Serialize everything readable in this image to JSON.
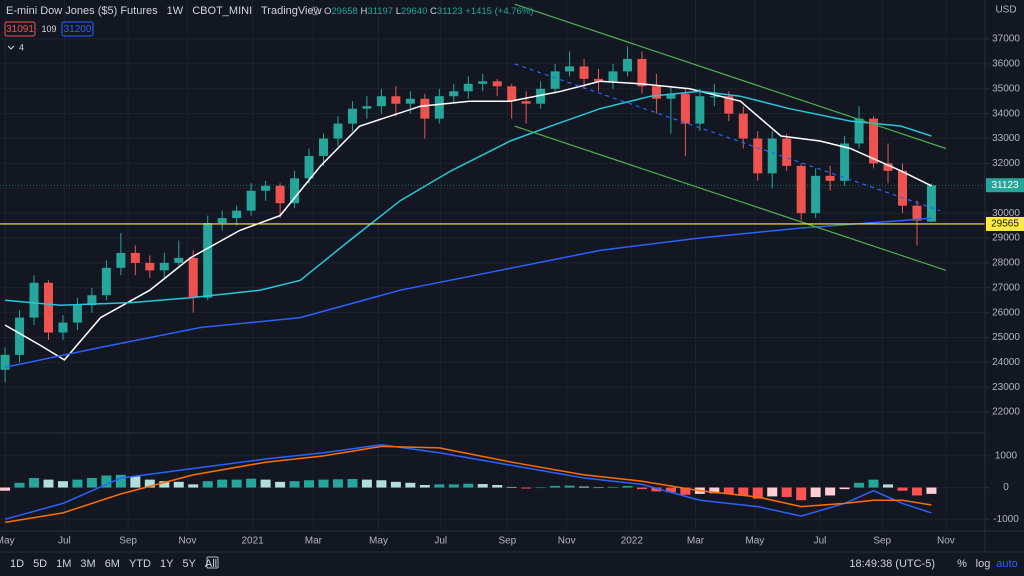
{
  "header": {
    "title": "E-mini Dow Jones ($5) Futures",
    "interval": "1W",
    "exchange": "CBOT_MINI",
    "source": "TradingView",
    "quote": [
      {
        "label": "O",
        "value": "29658"
      },
      {
        "label": "H",
        "value": "31197"
      },
      {
        "label": "L",
        "value": "29640"
      },
      {
        "label": "C",
        "value": "31123"
      }
    ],
    "change": "+1415 (+4.76%)",
    "sell": "31091",
    "spread": "109",
    "buy": "31200",
    "indicators": "4"
  },
  "chart_data": [
    {
      "type": "candlestick",
      "currency": "USD",
      "up_color": "#26a69a",
      "down_color": "#ef5350",
      "grid": true,
      "xlim": [
        -0.35,
        67.7
      ],
      "ylim": [
        21200,
        38570
      ],
      "yticks": [
        22000,
        23000,
        24000,
        25000,
        26000,
        27000,
        28000,
        29000,
        30000,
        31000,
        32000,
        33000,
        34000,
        35000,
        36000,
        37000
      ],
      "xticks": [
        {
          "value": 0,
          "label": "May"
        },
        {
          "value": 4.1,
          "label": "Jul"
        },
        {
          "value": 8.5,
          "label": "Sep"
        },
        {
          "value": 12.6,
          "label": "Nov"
        },
        {
          "value": 17.1,
          "label": "2021"
        },
        {
          "value": 21.3,
          "label": "Mar"
        },
        {
          "value": 25.8,
          "label": "May"
        },
        {
          "value": 30.1,
          "label": "Jul"
        },
        {
          "value": 34.7,
          "label": "Sep"
        },
        {
          "value": 38.8,
          "label": "Nov"
        },
        {
          "value": 43.3,
          "label": "2022"
        },
        {
          "value": 47.7,
          "label": "Mar"
        },
        {
          "value": 51.8,
          "label": "May"
        },
        {
          "value": 56.3,
          "label": "Jul"
        },
        {
          "value": 60.6,
          "label": "Sep"
        },
        {
          "value": 65,
          "label": "Nov"
        }
      ],
      "candles": [
        [
          23700,
          24600,
          23200,
          24300
        ],
        [
          24300,
          26100,
          24000,
          25800
        ],
        [
          25800,
          27500,
          25500,
          27200
        ],
        [
          27200,
          27300,
          24900,
          25200
        ],
        [
          25200,
          25900,
          24900,
          25600
        ],
        [
          25600,
          26600,
          25300,
          26300
        ],
        [
          26300,
          27000,
          26000,
          26700
        ],
        [
          26700,
          28100,
          26500,
          27800
        ],
        [
          27800,
          29200,
          27500,
          28400
        ],
        [
          28400,
          28700,
          27500,
          28000
        ],
        [
          28000,
          28300,
          27400,
          27700
        ],
        [
          27700,
          28400,
          27300,
          28000
        ],
        [
          28000,
          28900,
          27900,
          28200
        ],
        [
          28200,
          28500,
          26000,
          26600
        ],
        [
          26600,
          29900,
          26500,
          29600
        ],
        [
          29600,
          30100,
          29300,
          29800
        ],
        [
          29800,
          30300,
          29500,
          30100
        ],
        [
          30100,
          31200,
          29900,
          30900
        ],
        [
          30900,
          31300,
          30500,
          31100
        ],
        [
          31100,
          31200,
          29800,
          30400
        ],
        [
          30400,
          31700,
          30200,
          31400
        ],
        [
          31400,
          32600,
          31200,
          32300
        ],
        [
          32300,
          33200,
          31900,
          33000
        ],
        [
          33000,
          33900,
          32700,
          33600
        ],
        [
          33600,
          34500,
          33300,
          34200
        ],
        [
          34200,
          34700,
          33800,
          34300
        ],
        [
          34300,
          35000,
          34000,
          34700
        ],
        [
          34700,
          35100,
          33900,
          34400
        ],
        [
          34400,
          34900,
          34000,
          34600
        ],
        [
          34600,
          34800,
          33000,
          33800
        ],
        [
          33800,
          35000,
          33600,
          34700
        ],
        [
          34700,
          35200,
          34400,
          34900
        ],
        [
          34900,
          35500,
          34600,
          35200
        ],
        [
          35200,
          35600,
          34900,
          35300
        ],
        [
          35300,
          35400,
          34700,
          35100
        ],
        [
          35100,
          35200,
          33800,
          34500
        ],
        [
          34500,
          34900,
          33600,
          34400
        ],
        [
          34400,
          35300,
          34200,
          35000
        ],
        [
          35000,
          36000,
          34800,
          35700
        ],
        [
          35700,
          36500,
          35500,
          35900
        ],
        [
          35900,
          36200,
          35000,
          35400
        ],
        [
          35400,
          35800,
          34900,
          35300
        ],
        [
          35300,
          36000,
          35000,
          35700
        ],
        [
          35700,
          36700,
          35500,
          36200
        ],
        [
          36200,
          36500,
          34800,
          35100
        ],
        [
          35100,
          35600,
          34000,
          34600
        ],
        [
          34600,
          35100,
          33200,
          34800
        ],
        [
          34800,
          35000,
          32300,
          33600
        ],
        [
          33600,
          35000,
          33300,
          34700
        ],
        [
          34700,
          35200,
          34300,
          34700
        ],
        [
          34700,
          34900,
          33700,
          34000
        ],
        [
          34000,
          34300,
          32600,
          33000
        ],
        [
          33000,
          33300,
          31300,
          31600
        ],
        [
          31600,
          33300,
          31000,
          33000
        ],
        [
          33000,
          33200,
          31700,
          31900
        ],
        [
          31900,
          32000,
          29700,
          30000
        ],
        [
          30000,
          31800,
          29800,
          31500
        ],
        [
          31500,
          31900,
          30900,
          31300
        ],
        [
          31300,
          33100,
          31100,
          32800
        ],
        [
          32800,
          34300,
          32600,
          33800
        ],
        [
          33800,
          33900,
          31800,
          32000
        ],
        [
          32000,
          32800,
          31200,
          31700
        ],
        [
          31700,
          32000,
          30000,
          30300
        ],
        [
          30300,
          30500,
          28700,
          29700
        ],
        [
          29658,
          31197,
          29640,
          31123
        ]
      ],
      "series": [
        {
          "color": "#ffffff",
          "x": [
            0,
            2.4,
            4.1,
            6.6,
            10,
            12.8,
            16.2,
            19,
            21.8,
            24.5,
            28.7,
            32.1,
            34.9,
            38.4,
            41.1,
            43.9,
            47.3,
            50.8,
            53.6,
            56.3,
            58.4,
            61.9,
            64
          ],
          "values": [
            25500,
            24700,
            24100,
            25800,
            26900,
            28200,
            29300,
            29900,
            31900,
            33500,
            34300,
            34500,
            34500,
            34900,
            35300,
            35200,
            35000,
            34500,
            33100,
            32900,
            32600,
            31700,
            31100
          ]
        },
        {
          "color": "#26c6da",
          "x": [
            0,
            3.8,
            8.6,
            12.8,
            17.6,
            20.4,
            23.8,
            27.3,
            30.8,
            34.9,
            37.7,
            41.1,
            44.6,
            48,
            50.8,
            54.2,
            58.4,
            61.9,
            64
          ],
          "values": [
            26500,
            26300,
            26400,
            26600,
            26900,
            27300,
            28900,
            30500,
            31700,
            32900,
            33500,
            34200,
            34700,
            34900,
            34700,
            34200,
            33700,
            33500,
            33100
          ]
        },
        {
          "color": "#2962ff",
          "x": [
            0,
            6.6,
            13.5,
            20.4,
            27.3,
            34.2,
            41.1,
            48,
            54.9,
            61.9,
            64
          ],
          "values": [
            23800,
            24600,
            25400,
            25800,
            26900,
            27700,
            28500,
            29000,
            29400,
            29700,
            29800
          ]
        }
      ],
      "drawings": [
        {
          "color": "#4caf50",
          "dashed": false,
          "x": [
            35.2,
            65
          ],
          "values": [
            38400,
            32600
          ]
        },
        {
          "color": "#4caf50",
          "dashed": false,
          "x": [
            35.2,
            65
          ],
          "values": [
            33500,
            27700
          ]
        },
        {
          "color": "#2962ff",
          "dashed": true,
          "x": [
            35.2,
            64.6
          ],
          "values": [
            36000,
            30100
          ]
        }
      ],
      "hline": {
        "value": 29565,
        "color": "#ffeb3b"
      },
      "last_price": 31123
    },
    {
      "type": "macd",
      "xlim": [
        -0.35,
        67.7
      ],
      "ylim": [
        -1340,
        1690
      ],
      "yticks": [
        -1000,
        0,
        1000
      ],
      "grid": true,
      "hist_colors": [
        "#26a69a",
        "#b2dfdb",
        "#ff5252",
        "#ffcdd2"
      ],
      "histogram": [
        -100,
        150,
        300,
        250,
        200,
        250,
        300,
        380,
        400,
        350,
        250,
        200,
        180,
        100,
        200,
        250,
        250,
        280,
        250,
        180,
        200,
        230,
        250,
        260,
        270,
        250,
        230,
        180,
        150,
        80,
        100,
        100,
        120,
        110,
        80,
        20,
        -30,
        0,
        50,
        60,
        30,
        0,
        20,
        50,
        -50,
        -120,
        -150,
        -230,
        -200,
        -180,
        -200,
        -260,
        -350,
        -280,
        -300,
        -400,
        -300,
        -250,
        -50,
        150,
        250,
        100,
        -100,
        -250,
        -200
      ],
      "series": [
        {
          "color": "#2962ff",
          "x": [
            0,
            4,
            8,
            13,
            18,
            22,
            26,
            30,
            35,
            40,
            44,
            48,
            52,
            55,
            58,
            60,
            62,
            64
          ],
          "values": [
            -1000,
            -500,
            300,
            600,
            900,
            1100,
            1350,
            1100,
            700,
            300,
            100,
            -400,
            -600,
            -900,
            -500,
            -100,
            -500,
            -800
          ]
        },
        {
          "color": "#ff6d00",
          "x": [
            0,
            4,
            8,
            13,
            18,
            22,
            26,
            30,
            35,
            40,
            44,
            48,
            52,
            55,
            58,
            60,
            62,
            64
          ],
          "values": [
            -1100,
            -800,
            -200,
            400,
            800,
            1000,
            1300,
            1250,
            800,
            400,
            200,
            -100,
            -300,
            -600,
            -500,
            -400,
            -400,
            -550
          ]
        }
      ]
    }
  ],
  "toolbar": {
    "ranges": [
      "1D",
      "5D",
      "1M",
      "3M",
      "6M",
      "YTD",
      "1Y",
      "5Y",
      "All"
    ],
    "time": "18:49:38 (UTC-5)",
    "percent": "%",
    "log": "log",
    "auto": "auto"
  }
}
